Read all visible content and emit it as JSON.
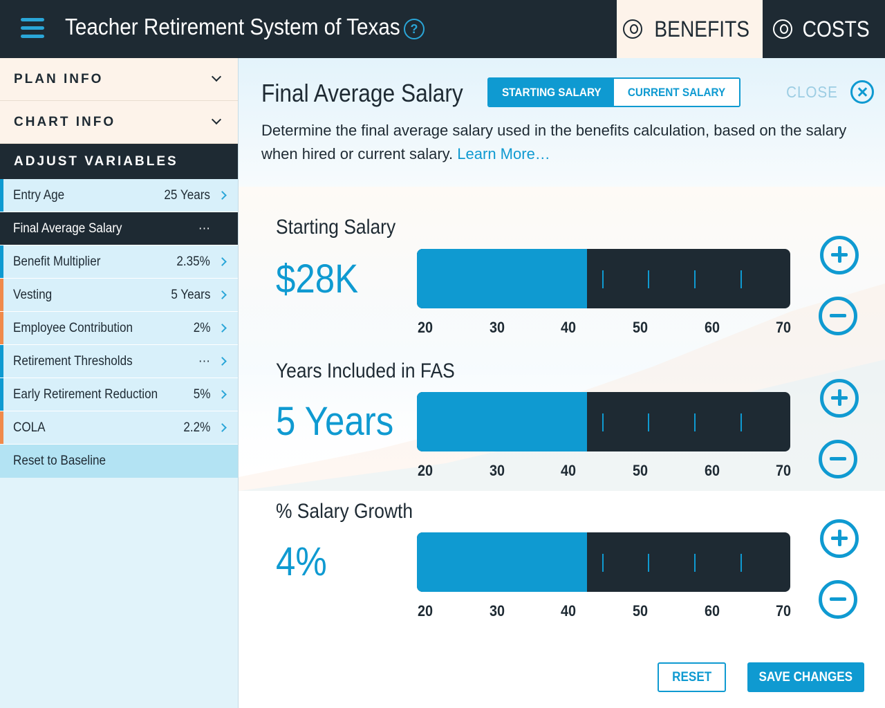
{
  "header": {
    "title": "Teacher Retirement System of Texas",
    "help": "?",
    "tabs": [
      {
        "label": "BENEFITS",
        "icon": "person-icon",
        "active": true
      },
      {
        "label": "COSTS",
        "icon": "group-icon",
        "active": false
      }
    ]
  },
  "sidebar": {
    "plan_info": "PLAN INFO",
    "chart_info": "CHART INFO",
    "adjust_header": "ADJUST VARIABLES",
    "items": [
      {
        "label": "Entry Age",
        "value": "25 Years",
        "accent": "#0f9ad1"
      },
      {
        "label": "Final Average Salary",
        "value": "···",
        "accent": "#0f9ad1"
      },
      {
        "label": "Benefit Multiplier",
        "value": "2.35%",
        "accent": "#0f9ad1"
      },
      {
        "label": "Vesting",
        "value": "5 Years",
        "accent": "#f08a4b"
      },
      {
        "label": "Employee Contribution",
        "value": "2%",
        "accent": "#f08a4b"
      },
      {
        "label": "Retirement Thresholds",
        "value": "···",
        "accent": "#0f9ad1"
      },
      {
        "label": "Early Retirement Reduction",
        "value": "5%",
        "accent": "#0f9ad1"
      },
      {
        "label": "COLA",
        "value": "2.2%",
        "accent": "#f08a4b"
      }
    ],
    "reset_baseline": "Reset to Baseline"
  },
  "panel": {
    "title": "Final Average Salary",
    "segments": {
      "starting": "STARTING SALARY",
      "current": "CURRENT SALARY"
    },
    "close": "CLOSE",
    "description": "Determine the final average salary used in the benefits calculation, based on the salary when hired or current salary.",
    "learn_more": "Learn More…",
    "sliders": [
      {
        "title": "Starting Salary",
        "value": "$28K",
        "fill_fraction": 0.455,
        "scale": [
          "20",
          "30",
          "40",
          "50",
          "60",
          "70"
        ]
      },
      {
        "title": "Years Included in FAS",
        "value": "5 Years",
        "fill_fraction": 0.455,
        "scale": [
          "20",
          "30",
          "40",
          "50",
          "60",
          "70"
        ]
      },
      {
        "title": "% Salary Growth",
        "value": "4%",
        "fill_fraction": 0.455,
        "scale": [
          "20",
          "30",
          "40",
          "50",
          "60",
          "70"
        ]
      }
    ],
    "reset": "RESET",
    "save": "SAVE CHANGES"
  },
  "colors": {
    "accent": "#0f9ad1",
    "dark": "#1e2a33",
    "orange": "#f08a4b"
  }
}
